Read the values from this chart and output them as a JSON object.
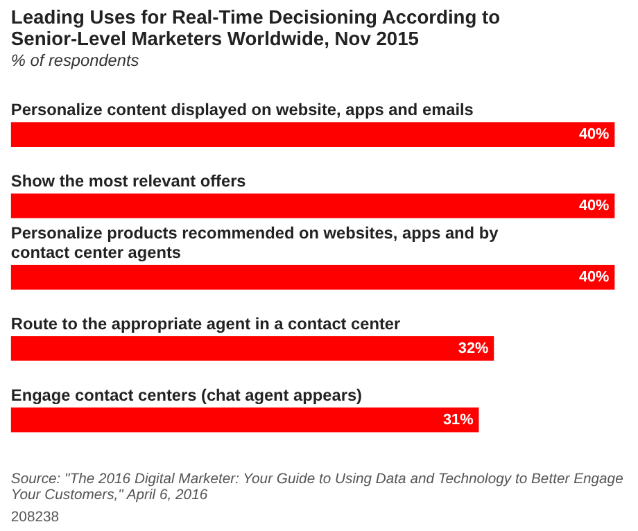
{
  "chart_data": {
    "type": "bar",
    "orientation": "horizontal",
    "title": "Leading Uses for Real-Time Decisioning According to Senior-Level Marketers Worldwide, Nov 2015",
    "subtitle": "% of respondents",
    "categories": [
      "Personalize content displayed on website, apps and emails",
      "Show the most relevant offers",
      "Personalize products recommended on websites, apps and by contact center agents",
      "Route to the appropriate agent in a contact center",
      "Engage contact centers (chat agent appears)"
    ],
    "values": [
      40,
      40,
      40,
      32,
      31
    ],
    "value_labels": [
      "40%",
      "40%",
      "40%",
      "32%",
      "31%"
    ],
    "color": "#ff0000",
    "annotations": [
      "Source: \"The 2016 Digital Marketer: Your Guide to Using Data and Technology to Better Engage Your Customers,\" April 6, 2016",
      "208238"
    ]
  }
}
